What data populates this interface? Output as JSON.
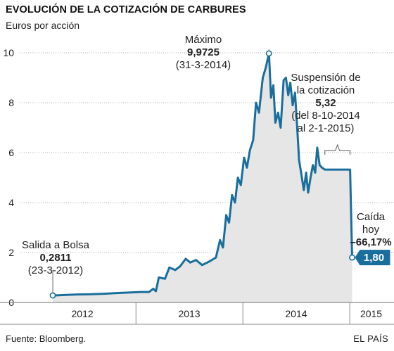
{
  "header": {
    "title": "EVOLUCIÓN DE LA COTIZACIÓN DE CARBURES",
    "subtitle": "Euros por acción"
  },
  "footer": {
    "source": "Fuente: Bloomberg.",
    "brand": "EL PAÍS"
  },
  "annotations": {
    "max": {
      "label": "Máximo",
      "value": "9,9725",
      "date": "(31-3-2014)"
    },
    "ipo": {
      "label": "Salida a Bolsa",
      "value": "0,2811",
      "date": "(23-3-2012)"
    },
    "suspension": {
      "line1": "Suspensión de",
      "line2": "la cotización",
      "value": "5,32",
      "date1": "(del 8-10-2014",
      "date2": "al 2-1-2015)"
    },
    "drop": {
      "line1": "Caída",
      "line2": "hoy",
      "value": "–66,17%"
    },
    "current_badge": "1,80"
  },
  "colors": {
    "line": "#1a6e9c",
    "area": "#e6e6e6",
    "badge": "#1a6e9c",
    "grid": "#b0b0b0"
  },
  "chart_data": {
    "type": "area",
    "y_ticks": [
      "0",
      "2",
      "4",
      "6",
      "8",
      "10"
    ],
    "x_ticks": [
      "2012",
      "2013",
      "2014",
      "2015"
    ],
    "ylim": [
      0,
      10
    ],
    "grid": "horizontal dotted",
    "series": [
      {
        "values": [
          [
            "2012-03-23",
            0.28
          ],
          [
            "2012-05-01",
            0.3
          ],
          [
            "2012-06-15",
            0.32
          ],
          [
            "2012-08-01",
            0.33
          ],
          [
            "2012-09-15",
            0.35
          ],
          [
            "2012-11-01",
            0.38
          ],
          [
            "2012-12-15",
            0.4
          ],
          [
            "2013-01-15",
            0.42
          ],
          [
            "2013-02-15",
            0.42
          ],
          [
            "2013-03-01",
            0.55
          ],
          [
            "2013-03-10",
            0.45
          ],
          [
            "2013-03-20",
            1.0
          ],
          [
            "2013-04-10",
            0.95
          ],
          [
            "2013-04-25",
            1.4
          ],
          [
            "2013-05-15",
            1.3
          ],
          [
            "2013-06-01",
            1.45
          ],
          [
            "2013-06-20",
            1.75
          ],
          [
            "2013-07-05",
            1.6
          ],
          [
            "2013-07-25",
            1.7
          ],
          [
            "2013-08-15",
            1.5
          ],
          [
            "2013-09-10",
            1.65
          ],
          [
            "2013-10-01",
            1.8
          ],
          [
            "2013-10-15",
            2.5
          ],
          [
            "2013-10-25",
            2.2
          ],
          [
            "2013-11-05",
            3.5
          ],
          [
            "2013-11-15",
            3.2
          ],
          [
            "2013-11-25",
            4.3
          ],
          [
            "2013-12-05",
            4.0
          ],
          [
            "2013-12-15",
            5.0
          ],
          [
            "2013-12-25",
            4.7
          ],
          [
            "2014-01-05",
            5.8
          ],
          [
            "2014-01-15",
            5.4
          ],
          [
            "2014-01-25",
            6.1
          ],
          [
            "2014-02-05",
            6.5
          ],
          [
            "2014-02-15",
            8.0
          ],
          [
            "2014-02-25",
            7.6
          ],
          [
            "2014-03-10",
            9.0
          ],
          [
            "2014-03-20",
            9.4
          ],
          [
            "2014-03-31",
            9.9725
          ],
          [
            "2014-04-07",
            8.2
          ],
          [
            "2014-04-15",
            8.7
          ],
          [
            "2014-04-22",
            7.2
          ],
          [
            "2014-05-01",
            7.6
          ],
          [
            "2014-05-10",
            7.0
          ],
          [
            "2014-05-20",
            8.9
          ],
          [
            "2014-05-28",
            9.0
          ],
          [
            "2014-06-05",
            8.3
          ],
          [
            "2014-06-12",
            8.8
          ],
          [
            "2014-06-20",
            7.9
          ],
          [
            "2014-06-28",
            8.4
          ],
          [
            "2014-07-05",
            7.1
          ],
          [
            "2014-07-12",
            5.7
          ],
          [
            "2014-07-20",
            5.1
          ],
          [
            "2014-07-28",
            4.5
          ],
          [
            "2014-08-05",
            5.2
          ],
          [
            "2014-08-12",
            4.4
          ],
          [
            "2014-08-20",
            5.0
          ],
          [
            "2014-08-28",
            5.5
          ],
          [
            "2014-09-05",
            5.2
          ],
          [
            "2014-09-12",
            6.2
          ],
          [
            "2014-09-20",
            5.5
          ],
          [
            "2014-09-28",
            5.4
          ],
          [
            "2014-10-08",
            5.32
          ],
          [
            "2015-01-02",
            5.32
          ],
          [
            "2015-01-09",
            1.8
          ]
        ]
      }
    ],
    "points": [
      {
        "date": "2012-03-23",
        "value": 0.2811
      },
      {
        "date": "2014-03-31",
        "value": 9.9725
      },
      {
        "date": "2015-01-09",
        "value": 1.8
      }
    ]
  }
}
